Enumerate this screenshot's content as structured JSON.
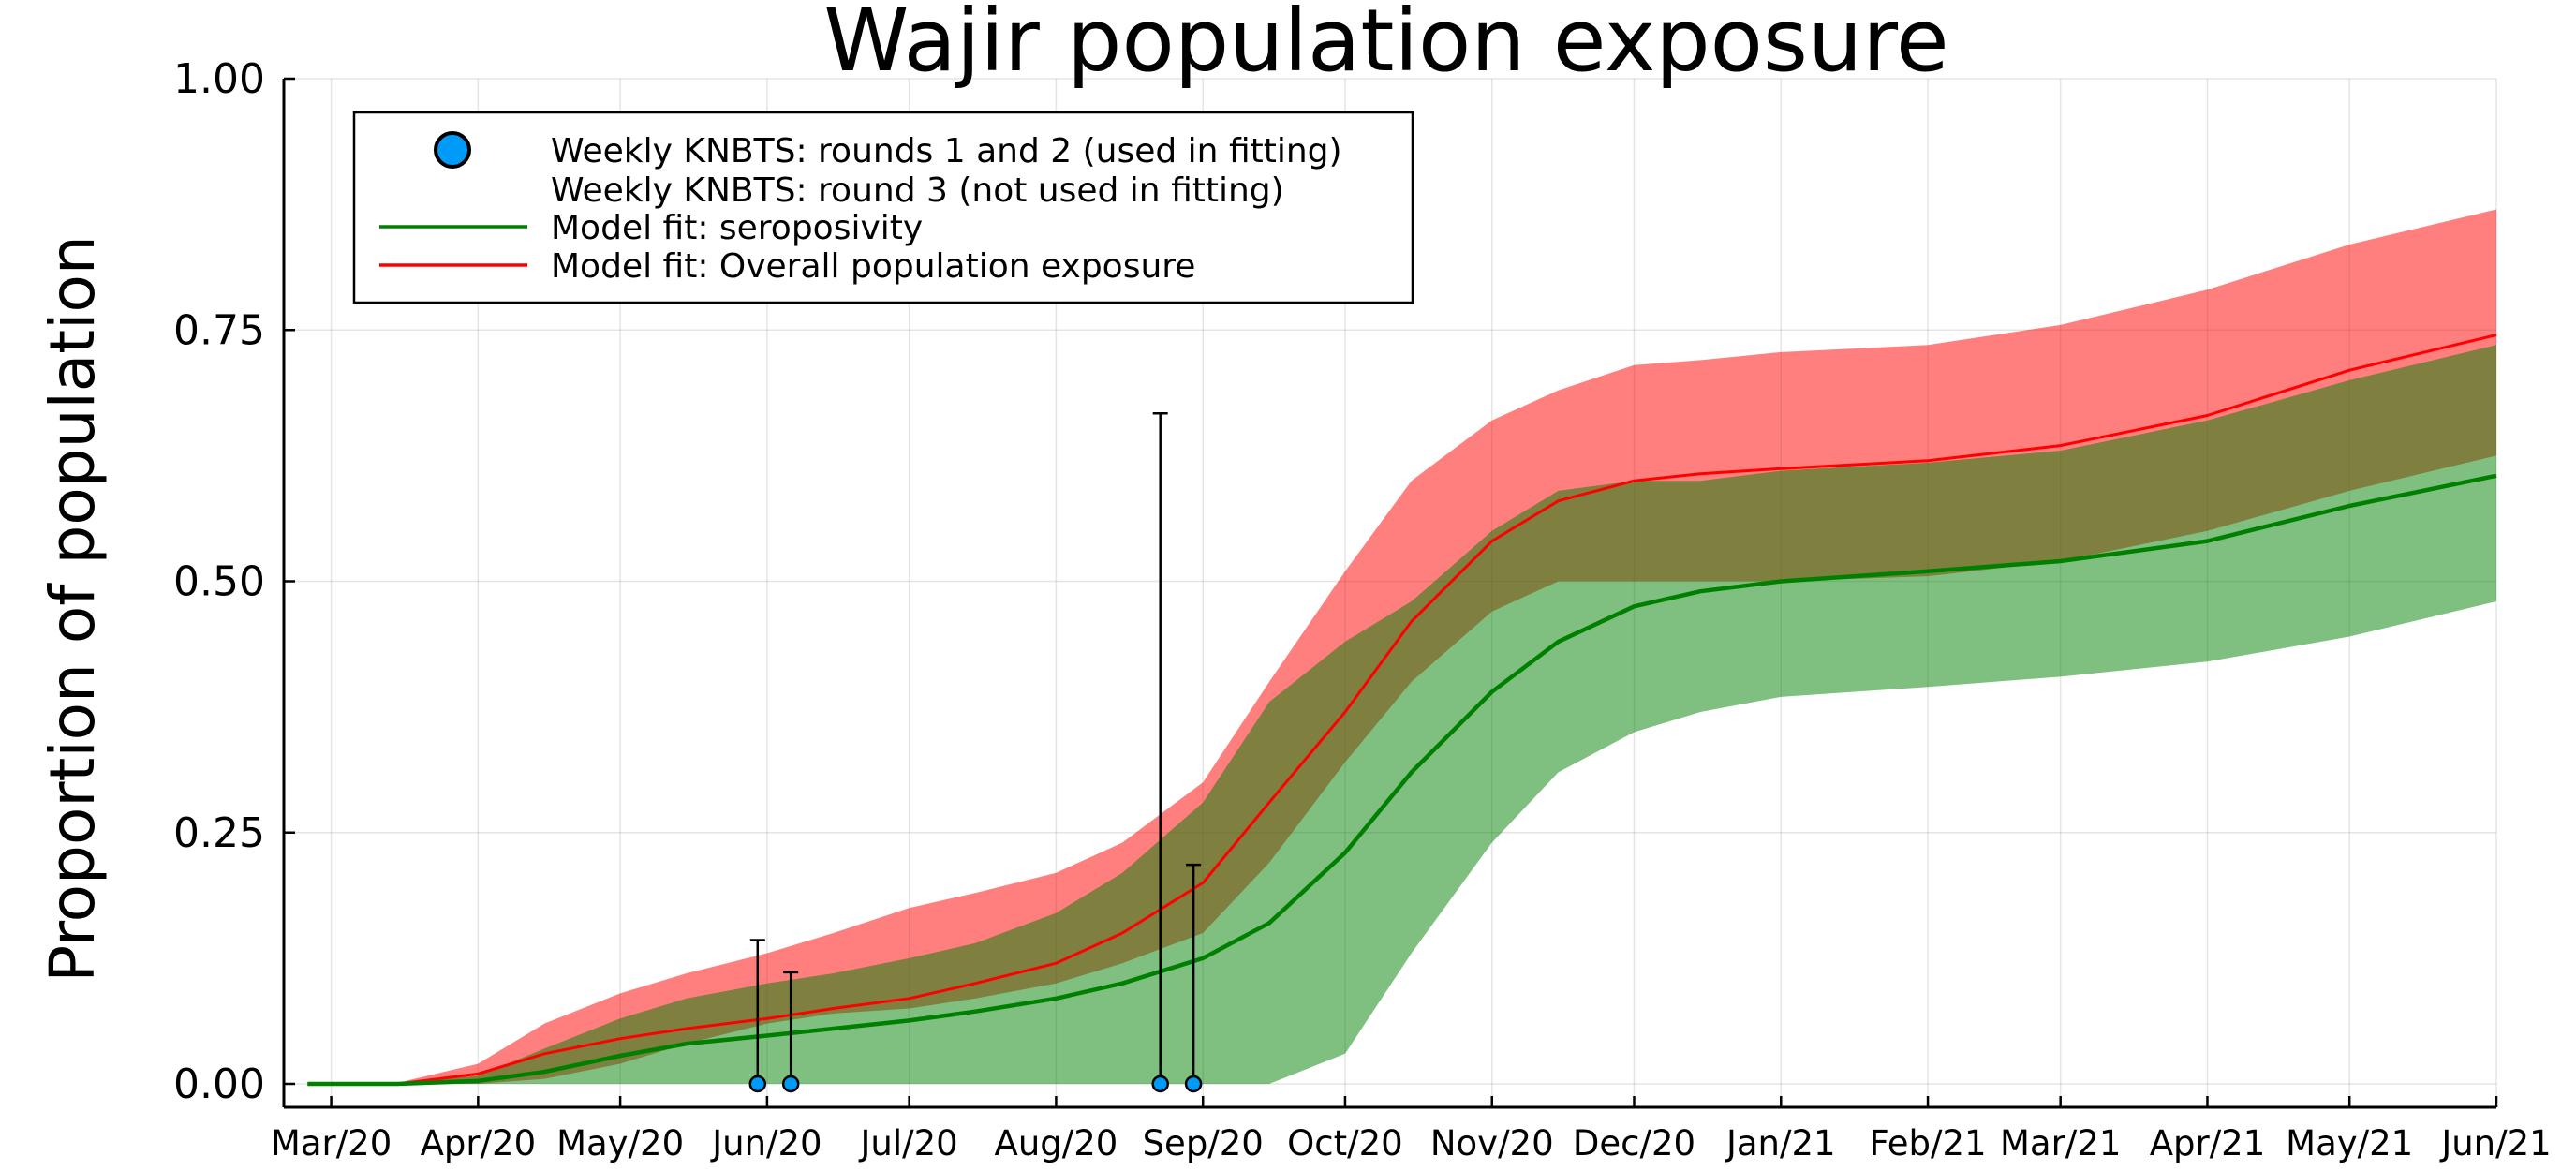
{
  "chart_data": {
    "type": "line",
    "title": "Wajir population exposure",
    "xlabel": "",
    "ylabel": "Proportion of population",
    "ylim": [
      0,
      1
    ],
    "xlim": [
      "2020-02-20",
      "2021-06-01"
    ],
    "y_ticks": [
      "0.00",
      "0.25",
      "0.50",
      "0.75",
      "1.00"
    ],
    "x_ticks": [
      {
        "date": "2020-03-01",
        "label": "Mar/20"
      },
      {
        "date": "2020-04-01",
        "label": "Apr/20"
      },
      {
        "date": "2020-05-01",
        "label": "May/20"
      },
      {
        "date": "2020-06-01",
        "label": "Jun/20"
      },
      {
        "date": "2020-07-01",
        "label": "Jul/20"
      },
      {
        "date": "2020-08-01",
        "label": "Aug/20"
      },
      {
        "date": "2020-09-01",
        "label": "Sep/20"
      },
      {
        "date": "2020-10-01",
        "label": "Oct/20"
      },
      {
        "date": "2020-11-01",
        "label": "Nov/20"
      },
      {
        "date": "2020-12-01",
        "label": "Dec/20"
      },
      {
        "date": "2021-01-01",
        "label": "Jan/21"
      },
      {
        "date": "2021-02-01",
        "label": "Feb/21"
      },
      {
        "date": "2021-03-01",
        "label": "Mar/21"
      },
      {
        "date": "2021-04-01",
        "label": "Apr/21"
      },
      {
        "date": "2021-05-01",
        "label": "May/21"
      },
      {
        "date": "2021-06-01",
        "label": "Jun/21"
      }
    ],
    "grid": true,
    "legend_position": "top-left",
    "legend": [
      {
        "label": "Weekly KNBTS: rounds 1 and 2 (used in fitting)",
        "kind": "marker",
        "color": "#009af9"
      },
      {
        "label": "Weekly KNBTS: round 3 (not used in fitting)",
        "kind": "none",
        "color": "#ffffff"
      },
      {
        "label": "Model fit: seroposivity",
        "kind": "line",
        "color": "#008000"
      },
      {
        "label": "Model fit: Overall population exposure",
        "kind": "line",
        "color": "#ff0000"
      }
    ],
    "series": [
      {
        "name": "Model fit: Overall population exposure",
        "color": "#ff0000",
        "band_opacity": 0.5,
        "x": [
          "2020-02-25",
          "2020-03-15",
          "2020-04-01",
          "2020-04-15",
          "2020-05-01",
          "2020-05-15",
          "2020-06-01",
          "2020-06-15",
          "2020-07-01",
          "2020-07-15",
          "2020-08-01",
          "2020-08-15",
          "2020-09-01",
          "2020-09-15",
          "2020-10-01",
          "2020-10-15",
          "2020-11-01",
          "2020-11-15",
          "2020-12-01",
          "2020-12-15",
          "2021-01-01",
          "2021-02-01",
          "2021-03-01",
          "2021-04-01",
          "2021-05-01",
          "2021-06-01"
        ],
        "y": [
          0,
          0.0,
          0.01,
          0.03,
          0.045,
          0.055,
          0.065,
          0.075,
          0.085,
          0.1,
          0.12,
          0.15,
          0.2,
          0.28,
          0.37,
          0.46,
          0.54,
          0.58,
          0.6,
          0.607,
          0.612,
          0.62,
          0.635,
          0.665,
          0.71,
          0.745
        ],
        "lower": [
          0,
          0.0,
          0.0,
          0.005,
          0.02,
          0.04,
          0.06,
          0.07,
          0.075,
          0.085,
          0.1,
          0.12,
          0.15,
          0.22,
          0.32,
          0.4,
          0.47,
          0.5,
          0.5,
          0.5,
          0.5,
          0.505,
          0.52,
          0.55,
          0.59,
          0.625
        ],
        "upper": [
          0,
          0.001,
          0.02,
          0.06,
          0.09,
          0.11,
          0.13,
          0.15,
          0.175,
          0.19,
          0.21,
          0.24,
          0.3,
          0.4,
          0.51,
          0.6,
          0.66,
          0.69,
          0.715,
          0.72,
          0.728,
          0.735,
          0.755,
          0.79,
          0.835,
          0.87
        ]
      },
      {
        "name": "Model fit: seroposivity",
        "color": "#008000",
        "band_opacity": 0.5,
        "x": [
          "2020-02-25",
          "2020-03-15",
          "2020-04-01",
          "2020-04-15",
          "2020-05-01",
          "2020-05-15",
          "2020-06-01",
          "2020-06-15",
          "2020-07-01",
          "2020-07-15",
          "2020-08-01",
          "2020-08-15",
          "2020-09-01",
          "2020-09-15",
          "2020-10-01",
          "2020-10-15",
          "2020-11-01",
          "2020-11-15",
          "2020-12-01",
          "2020-12-15",
          "2021-01-01",
          "2021-02-01",
          "2021-03-01",
          "2021-04-01",
          "2021-05-01",
          "2021-06-01"
        ],
        "y": [
          0,
          0.0,
          0.003,
          0.012,
          0.028,
          0.04,
          0.048,
          0.055,
          0.063,
          0.072,
          0.085,
          0.1,
          0.125,
          0.16,
          0.23,
          0.31,
          0.39,
          0.44,
          0.475,
          0.49,
          0.5,
          0.51,
          0.52,
          0.54,
          0.575,
          0.605
        ],
        "lower": [
          0,
          0.0,
          0.0,
          0.0,
          0.0,
          0.0,
          0.0,
          0.0,
          0.0,
          0.0,
          0.0,
          0.0,
          0.0,
          0.0,
          0.03,
          0.13,
          0.24,
          0.31,
          0.35,
          0.37,
          0.385,
          0.395,
          0.405,
          0.42,
          0.445,
          0.48
        ],
        "upper": [
          0,
          0.001,
          0.008,
          0.035,
          0.065,
          0.085,
          0.1,
          0.11,
          0.125,
          0.14,
          0.17,
          0.21,
          0.28,
          0.38,
          0.44,
          0.48,
          0.55,
          0.59,
          0.6,
          0.6,
          0.61,
          0.618,
          0.63,
          0.66,
          0.7,
          0.735
        ]
      }
    ],
    "points": [
      {
        "group": "rounds 1 and 2",
        "date": "2020-05-30",
        "y": 0.0,
        "upper": 0.143
      },
      {
        "group": "rounds 1 and 2",
        "date": "2020-06-06",
        "y": 0.0,
        "upper": 0.111
      },
      {
        "group": "rounds 1 and 2",
        "date": "2020-08-23",
        "y": 0.0,
        "upper": 0.667
      },
      {
        "group": "rounds 1 and 2",
        "date": "2020-08-30",
        "y": 0.0,
        "upper": 0.218
      }
    ]
  }
}
